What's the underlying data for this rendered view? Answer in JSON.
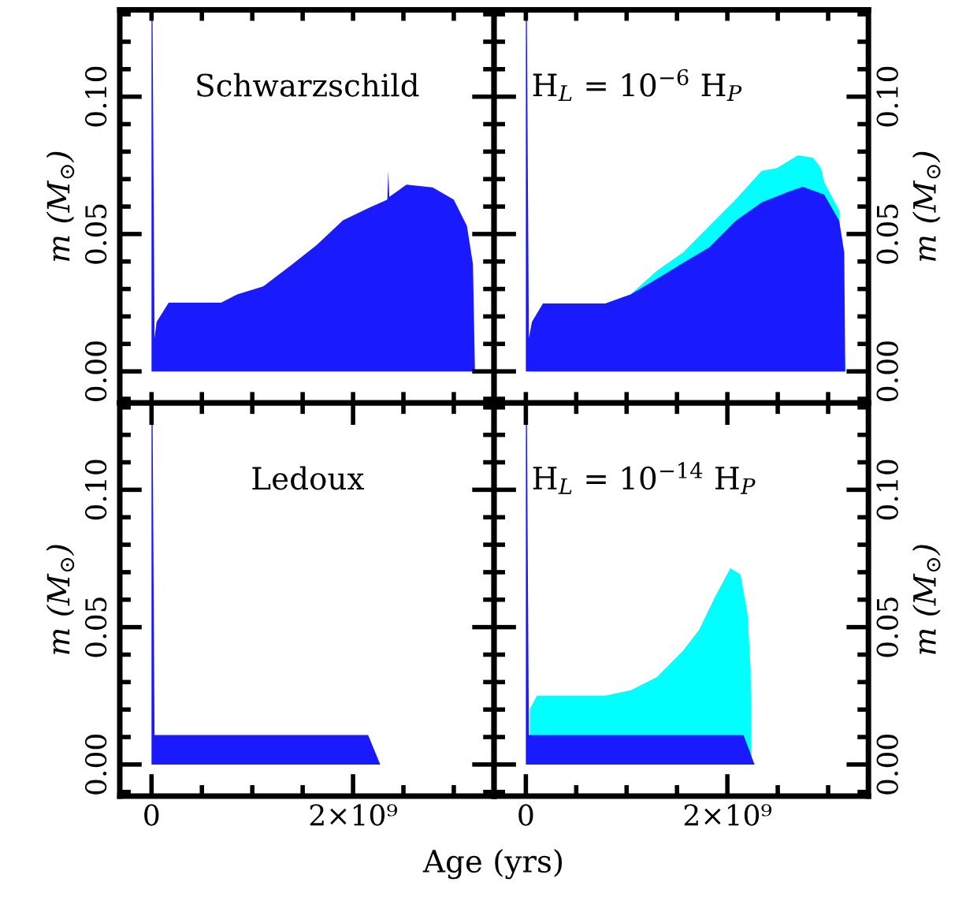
{
  "chart_data": [
    {
      "type": "area",
      "annotations": [
        "Schwarzschild"
      ],
      "ylabel": "m (M$_{⊙}$)",
      "xlim": [
        -315000000.0,
        3400000000.0
      ],
      "ylim": [
        -0.0115,
        0.1316
      ],
      "xticks": [
        {
          "value": 0,
          "label": null
        },
        {
          "value": 500000000.0,
          "label": null
        },
        {
          "value": 1000000000.0,
          "label": null
        },
        {
          "value": 1500000000.0,
          "label": null
        },
        {
          "value": 2000000000.0,
          "label": null
        },
        {
          "value": 2500000000.0,
          "label": null
        },
        {
          "value": 3000000000.0,
          "label": null
        }
      ],
      "yticks": [
        {
          "value": -0.01,
          "label": null
        },
        {
          "value": 0,
          "label": "0.00"
        },
        {
          "value": 0.01,
          "label": null
        },
        {
          "value": 0.02,
          "label": null
        },
        {
          "value": 0.03,
          "label": null
        },
        {
          "value": 0.04,
          "label": null
        },
        {
          "value": 0.05,
          "label": "0.05"
        },
        {
          "value": 0.06,
          "label": null
        },
        {
          "value": 0.07,
          "label": null
        },
        {
          "value": 0.08,
          "label": null
        },
        {
          "value": 0.09,
          "label": null
        },
        {
          "value": 0.1,
          "label": "0.10"
        },
        {
          "value": 0.11,
          "label": null
        },
        {
          "value": 0.12,
          "label": null
        },
        {
          "value": 0.13,
          "label": null
        }
      ],
      "tick_labels": "y",
      "series": [
        {
          "color": "#1a1aff",
          "x": [
            0,
            10000000.0,
            30000000.0,
            50000000.0,
            170000000.0,
            690000000.0,
            850000000.0,
            1110000000.0,
            1380000000.0,
            1640000000.0,
            1900000000.0,
            2160000000.0,
            2340000000.0,
            2350000000.0,
            2360000000.0,
            2530000000.0,
            2790000000.0,
            3000000000.0,
            3130000000.0,
            3190000000.0,
            3210000000.0
          ],
          "values": [
            0.13,
            0.13,
            0.012,
            0.018,
            0.025,
            0.025,
            0.028,
            0.031,
            0.0385,
            0.046,
            0.055,
            0.0596,
            0.0625,
            0.073,
            0.0635,
            0.068,
            0.067,
            0.0625,
            0.053,
            0.039,
            0
          ]
        }
      ]
    },
    {
      "type": "area",
      "annotations": [
        "H$_{L}$ = 10$^{−6}$ H$_{P}$"
      ],
      "ylabel": "m (M$_{⊙}$)",
      "xlim": [
        -315000000.0,
        3400000000.0
      ],
      "ylim": [
        -0.0115,
        0.1316
      ],
      "xticks": [
        {
          "value": 0,
          "label": null
        },
        {
          "value": 500000000.0,
          "label": null
        },
        {
          "value": 1000000000.0,
          "label": null
        },
        {
          "value": 1500000000.0,
          "label": null
        },
        {
          "value": 2000000000.0,
          "label": null
        },
        {
          "value": 2500000000.0,
          "label": null
        },
        {
          "value": 3000000000.0,
          "label": null
        }
      ],
      "yticks": [
        {
          "value": -0.01,
          "label": null
        },
        {
          "value": 0,
          "label": "0.00"
        },
        {
          "value": 0.01,
          "label": null
        },
        {
          "value": 0.02,
          "label": null
        },
        {
          "value": 0.03,
          "label": null
        },
        {
          "value": 0.04,
          "label": null
        },
        {
          "value": 0.05,
          "label": "0.05"
        },
        {
          "value": 0.06,
          "label": null
        },
        {
          "value": 0.07,
          "label": null
        },
        {
          "value": 0.08,
          "label": null
        },
        {
          "value": 0.09,
          "label": null
        },
        {
          "value": 0.1,
          "label": "0.10"
        },
        {
          "value": 0.11,
          "label": null
        },
        {
          "value": 0.12,
          "label": null
        },
        {
          "value": 0.13,
          "label": null
        }
      ],
      "tick_labels": "y",
      "series": [
        {
          "color": "#00ffff",
          "x": [
            60000000.0,
            170000000.0,
            790000000.0,
            1040000000.0,
            1300000000.0,
            1560000000.0,
            1820000000.0,
            2080000000.0,
            2340000000.0,
            2490000000.0,
            2700000000.0,
            2850000000.0,
            2930000000.0,
            2960000000.0,
            3110000000.0,
            3170000000.0
          ],
          "values": [
            0.018,
            0.0247,
            0.0247,
            0.028,
            0.0366,
            0.0433,
            0.0529,
            0.0625,
            0.073,
            0.074,
            0.0787,
            0.0778,
            0.074,
            0.069,
            0.0586,
            0
          ]
        },
        {
          "color": "#1a1aff",
          "x": [
            0,
            10000000.0,
            30000000.0,
            60000000.0,
            170000000.0,
            790000000.0,
            1040000000.0,
            1300000000.0,
            1560000000.0,
            1820000000.0,
            2080000000.0,
            2340000000.0,
            2600000000.0,
            2750000000.0,
            2960000000.0,
            3110000000.0,
            3160000000.0,
            3170000000.0
          ],
          "values": [
            0.13,
            0.13,
            0.012,
            0.018,
            0.0247,
            0.0247,
            0.028,
            0.0337,
            0.0395,
            0.0452,
            0.0548,
            0.0615,
            0.0653,
            0.0672,
            0.0644,
            0.0548,
            0.0433,
            0
          ]
        }
      ]
    },
    {
      "type": "area",
      "annotations": [
        "Ledoux"
      ],
      "ylabel": "m (M$_{⊙}$)",
      "xlabel": "Age (yrs)",
      "xlim": [
        -315000000.0,
        3400000000.0
      ],
      "ylim": [
        -0.0115,
        0.1316
      ],
      "xticks": [
        0,
        {
          "value": 500000000.0,
          "label": null
        },
        {
          "value": 1000000000.0,
          "label": null
        },
        {
          "value": 1500000000.0,
          "label": null
        },
        {
          "value": 2000000000.0,
          "label": "2×10⁹"
        },
        {
          "value": 2500000000.0,
          "label": null
        },
        {
          "value": 3000000000.0,
          "label": null
        }
      ],
      "yticks": [
        {
          "value": -0.01,
          "label": null
        },
        {
          "value": 0,
          "label": "0.00"
        },
        {
          "value": 0.01,
          "label": null
        },
        {
          "value": 0.02,
          "label": null
        },
        {
          "value": 0.03,
          "label": null
        },
        {
          "value": 0.04,
          "label": null
        },
        {
          "value": 0.05,
          "label": "0.05"
        },
        {
          "value": 0.06,
          "label": null
        },
        {
          "value": 0.07,
          "label": null
        },
        {
          "value": 0.08,
          "label": null
        },
        {
          "value": 0.09,
          "label": null
        },
        {
          "value": 0.1,
          "label": "0.10"
        },
        {
          "value": 0.11,
          "label": null
        },
        {
          "value": 0.12,
          "label": null
        },
        {
          "value": 0.13,
          "label": null
        }
      ],
      "series": [
        {
          "color": "#1a1aff",
          "x": [
            0,
            10000000.0,
            30000000.0,
            40000000.0,
            2150000000.0,
            2270000000.0
          ],
          "values": [
            0.13,
            0.13,
            0.0107,
            0.0107,
            0.0107,
            0
          ]
        }
      ]
    },
    {
      "type": "area",
      "annotations": [
        "H$_{L}$ = 10$^{−14}$ H$_{P}$"
      ],
      "ylabel": "m (M$_{⊙}$)",
      "xlim": [
        -315000000.0,
        3400000000.0
      ],
      "ylim": [
        -0.0115,
        0.1316
      ],
      "xticks": [
        0,
        {
          "value": 500000000.0,
          "label": null
        },
        {
          "value": 1000000000.0,
          "label": null
        },
        {
          "value": 1500000000.0,
          "label": null
        },
        {
          "value": 2000000000.0,
          "label": "2×10⁹"
        },
        {
          "value": 2500000000.0,
          "label": null
        },
        {
          "value": 3000000000.0,
          "label": null
        }
      ],
      "yticks": [
        {
          "value": -0.01,
          "label": null
        },
        {
          "value": 0,
          "label": "0.00"
        },
        {
          "value": 0.01,
          "label": null
        },
        {
          "value": 0.02,
          "label": null
        },
        {
          "value": 0.03,
          "label": null
        },
        {
          "value": 0.04,
          "label": null
        },
        {
          "value": 0.05,
          "label": "0.05"
        },
        {
          "value": 0.06,
          "label": null
        },
        {
          "value": 0.07,
          "label": null
        },
        {
          "value": 0.08,
          "label": null
        },
        {
          "value": 0.09,
          "label": null
        },
        {
          "value": 0.1,
          "label": "0.10"
        },
        {
          "value": 0.11,
          "label": null
        },
        {
          "value": 0.12,
          "label": null
        },
        {
          "value": 0.13,
          "label": null
        }
      ],
      "series": [
        {
          "color": "#00ffff",
          "x": [
            40000000.0,
            110000000.0,
            790000000.0,
            1040000000.0,
            1300000000.0,
            1560000000.0,
            1720000000.0,
            1870000000.0,
            2030000000.0,
            2130000000.0,
            2200000000.0,
            2230000000.0,
            2240000000.0
          ],
          "values": [
            0.0203,
            0.0251,
            0.0251,
            0.027,
            0.0318,
            0.0414,
            0.049,
            0.0605,
            0.0715,
            0.0692,
            0.0548,
            0.035,
            0
          ]
        },
        {
          "color": "#1a1aff",
          "x": [
            0,
            10000000.0,
            30000000.0,
            40000000.0,
            2160000000.0,
            2270000000.0
          ],
          "values": [
            0.13,
            0.13,
            0.0107,
            0.0107,
            0.0107,
            0
          ]
        }
      ]
    }
  ]
}
